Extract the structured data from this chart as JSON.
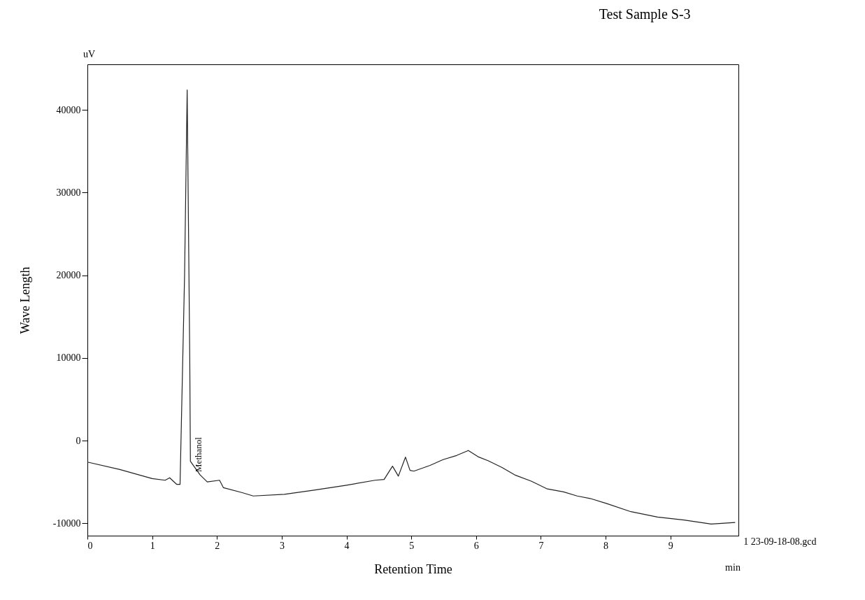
{
  "chart_data": {
    "type": "line",
    "title": "Test Sample S-3",
    "xlabel": "Retention Time",
    "ylabel": "Wave Length",
    "x": [
      0,
      0.5,
      1.0,
      1.2,
      1.27,
      1.38,
      1.43,
      1.5,
      1.54,
      1.58,
      1.59,
      1.74,
      1.85,
      2.04,
      2.1,
      2.39,
      2.56,
      3.04,
      3.5,
      4.0,
      4.44,
      4.58,
      4.71,
      4.8,
      4.91,
      4.98,
      5.04,
      5.29,
      5.49,
      5.7,
      5.88,
      6.03,
      6.19,
      6.4,
      6.61,
      6.85,
      7.1,
      7.35,
      7.56,
      7.76,
      8.01,
      8.39,
      8.8,
      9.21,
      9.63,
      10.0
    ],
    "values": [
      -2600,
      -3500,
      -4600,
      -4800,
      -4500,
      -5300,
      -5300,
      20000,
      42400,
      10000,
      -2500,
      -4150,
      -5000,
      -4800,
      -5700,
      -6300,
      -6700,
      -6500,
      -6000,
      -5400,
      -4800,
      -4700,
      -3100,
      -4300,
      -2000,
      -3600,
      -3700,
      -3000,
      -2300,
      -1800,
      -1200,
      -1950,
      -2450,
      -3250,
      -4200,
      -4900,
      -5850,
      -6200,
      -6700,
      -7000,
      -7600,
      -8600,
      -9250,
      -9600,
      -10100,
      -9900
    ],
    "color": "#222222",
    "marker": "none",
    "line_style": "solid",
    "grid": false,
    "xlim": [
      0,
      10.05
    ],
    "xticks": [
      0,
      1,
      2,
      3,
      4,
      5,
      6,
      7,
      8,
      9
    ],
    "ylim": [
      -11500,
      45500
    ],
    "yticks": [
      -10000,
      0,
      10000,
      20000,
      30000,
      40000
    ],
    "annotations": [
      {
        "text": "Methanol",
        "x": 1.72,
        "y": -3800
      },
      "1 23-09-18-08.gcd",
      "uV",
      "min"
    ]
  }
}
